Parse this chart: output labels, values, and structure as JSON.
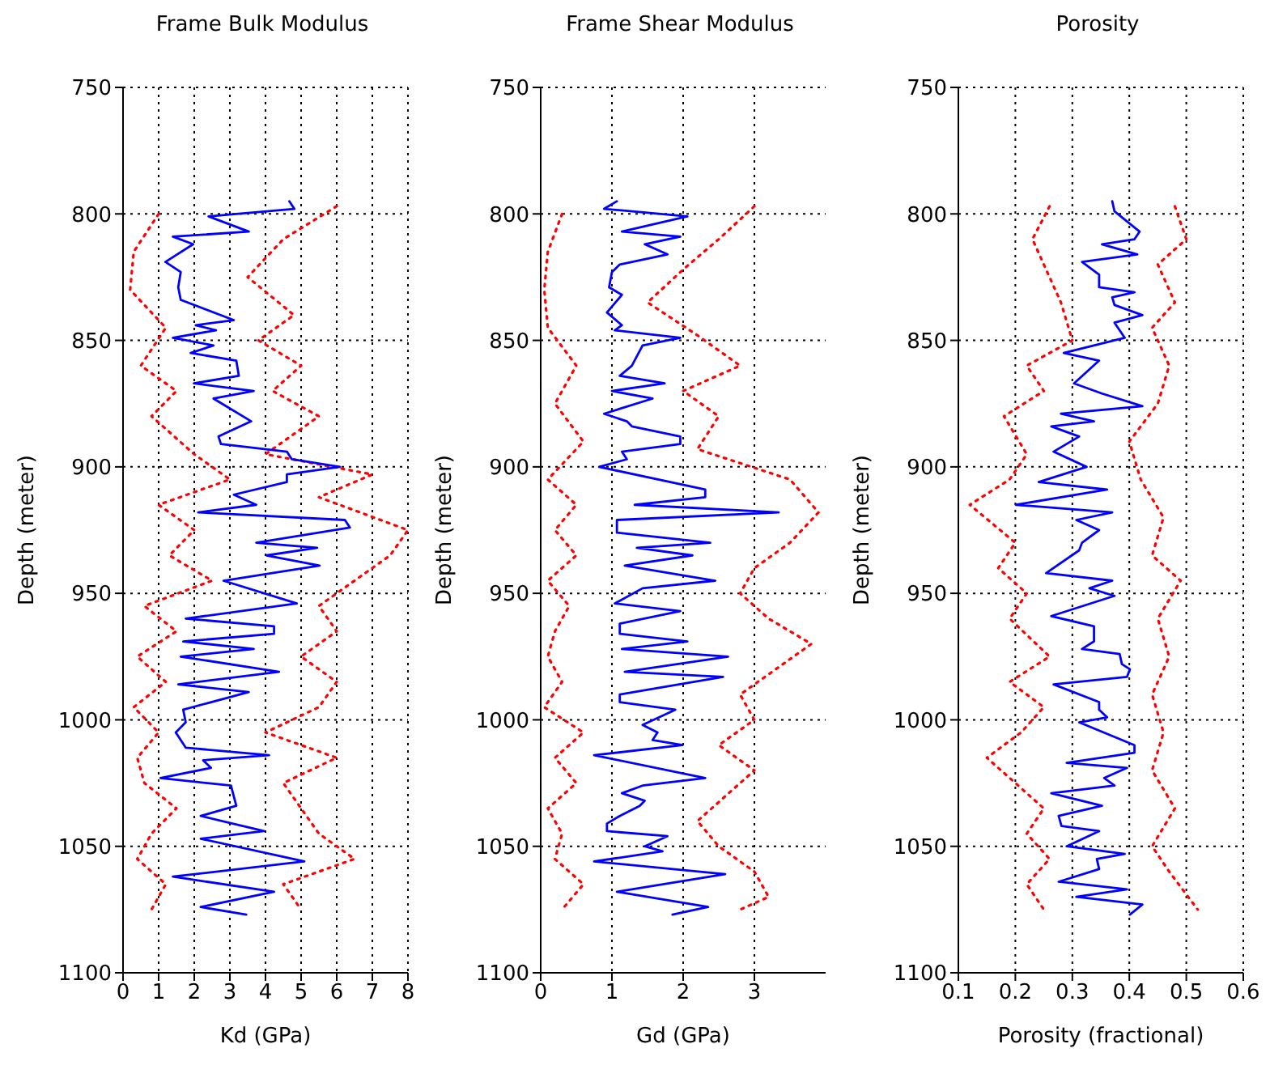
{
  "chart_data": [
    {
      "type": "line",
      "title": "Frame Bulk Modulus",
      "xlabel": "Kd (GPa)",
      "ylabel": "Depth (meter)",
      "xlim": [
        0,
        8
      ],
      "xticks": [
        0,
        1,
        2,
        3,
        4,
        5,
        6,
        7,
        8
      ],
      "ylim": [
        1100,
        750
      ],
      "yticks": [
        750,
        800,
        850,
        900,
        950,
        1000,
        1050,
        1100
      ],
      "grid": true,
      "series": [
        {
          "color": "#ff0000",
          "line_style": "dotted",
          "x": [
            1.0,
            0.3,
            0.2,
            1.2,
            0.5,
            1.5,
            0.8,
            2.0,
            3.0,
            1.0,
            2.0,
            1.3,
            2.5,
            0.6,
            1.5,
            0.4,
            1.2,
            0.3,
            1.0,
            0.4,
            0.6,
            1.5,
            0.8,
            0.4,
            1.2,
            0.8
          ],
          "values": [
            800,
            815,
            830,
            845,
            860,
            870,
            880,
            895,
            905,
            915,
            925,
            935,
            945,
            955,
            965,
            975,
            985,
            995,
            1005,
            1015,
            1025,
            1035,
            1045,
            1055,
            1065,
            1075
          ]
        },
        {
          "color": "#ff0000",
          "line_style": "dotted",
          "x": [
            6.0,
            4.5,
            3.5,
            4.8,
            3.8,
            5.0,
            4.2,
            5.5,
            4.0,
            7.0,
            5.5,
            8.0,
            7.5,
            6.5,
            5.5,
            6.0,
            5.0,
            6.0,
            5.5,
            4.0,
            6.0,
            4.5,
            5.0,
            5.5,
            6.5,
            4.5,
            5.0
          ],
          "values": [
            797,
            810,
            825,
            840,
            850,
            860,
            870,
            880,
            895,
            903,
            912,
            925,
            935,
            945,
            955,
            965,
            975,
            985,
            995,
            1005,
            1015,
            1025,
            1035,
            1045,
            1055,
            1065,
            1075
          ]
        },
        {
          "color": "#0000ff",
          "line_style": "solid",
          "x": [
            4.67,
            4.81,
            2.4,
            3.53,
            1.4,
            1.97,
            1.19,
            1.62,
            1.55,
            1.62,
            3.11,
            2.04,
            2.61,
            1.4,
            2.54,
            1.9,
            3.18,
            3.25,
            1.99,
            3.67,
            2.54,
            3.6,
            2.68,
            2.75,
            4.6,
            4.74,
            6.09,
            4.6,
            4.6,
            3.11,
            3.74,
            2.11,
            6.23,
            6.37,
            3.74,
            5.45,
            4.03,
            5.52,
            2.82,
            4.88,
            1.76,
            4.24,
            4.24,
            1.69,
            3.67,
            1.62,
            4.38,
            1.55,
            3.53,
            1.69,
            1.76,
            1.48,
            1.76,
            4.1,
            2.25,
            2.47,
            1.05,
            3.03,
            3.18,
            2.18,
            3.96,
            2.18,
            5.09,
            1.4,
            4.24,
            2.18,
            3.46
          ],
          "values": [
            795,
            798,
            801,
            807,
            809,
            812,
            819,
            823,
            829,
            834,
            842,
            844,
            846,
            849,
            852,
            855,
            858,
            864,
            867,
            870,
            873,
            882,
            888,
            891,
            894,
            897,
            900,
            903,
            906,
            911,
            915,
            918,
            921,
            924,
            930,
            932,
            935,
            939,
            945,
            954,
            960,
            963,
            966,
            969,
            972,
            975,
            981,
            986,
            989,
            996,
            1001,
            1005,
            1011,
            1014,
            1016,
            1019,
            1023,
            1026,
            1034,
            1038,
            1044,
            1047,
            1056,
            1062,
            1068,
            1074,
            1077
          ]
        }
      ]
    },
    {
      "type": "line",
      "title": "Frame Shear Modulus",
      "xlabel": "Gd (GPa)",
      "ylabel": "Depth (meter)",
      "xlim": [
        0,
        4
      ],
      "xticks": [
        0,
        1,
        2,
        3
      ],
      "ylim": [
        1100,
        750
      ],
      "yticks": [
        750,
        800,
        850,
        900,
        950,
        1000,
        1050,
        1100
      ],
      "grid": true,
      "series": [
        {
          "color": "#ff0000",
          "line_style": "dotted",
          "x": [
            0.3,
            0.1,
            0.05,
            0.1,
            0.5,
            0.2,
            0.6,
            0.1,
            0.5,
            0.2,
            0.5,
            0.1,
            0.4,
            0.2,
            0.1,
            0.3,
            0.05,
            0.6,
            0.2,
            0.5,
            0.1,
            0.3,
            0.2,
            0.6,
            0.3
          ],
          "values": [
            800,
            815,
            830,
            845,
            860,
            875,
            890,
            905,
            915,
            925,
            935,
            945,
            955,
            965,
            975,
            985,
            995,
            1005,
            1015,
            1025,
            1035,
            1045,
            1055,
            1065,
            1075
          ]
        },
        {
          "color": "#ff0000",
          "line_style": "dotted",
          "x": [
            3.0,
            2.5,
            2.0,
            1.5,
            2.2,
            2.8,
            2.0,
            2.5,
            2.2,
            3.5,
            3.9,
            3.5,
            3.0,
            2.8,
            3.2,
            3.8,
            3.3,
            2.8,
            3.0,
            2.5,
            3.0,
            2.6,
            2.2,
            2.5,
            3.0,
            3.2,
            2.8
          ],
          "values": [
            797,
            810,
            822,
            835,
            848,
            860,
            870,
            880,
            893,
            905,
            918,
            930,
            940,
            950,
            960,
            970,
            980,
            990,
            1000,
            1010,
            1020,
            1030,
            1040,
            1050,
            1060,
            1070,
            1075
          ]
        },
        {
          "color": "#0000ff",
          "line_style": "solid",
          "x": [
            1.07,
            0.89,
            2.06,
            1.14,
            1.96,
            1.46,
            1.78,
            1.11,
            1.0,
            0.96,
            1.14,
            0.93,
            1.14,
            1.04,
            1.96,
            1.43,
            1.28,
            1.11,
            1.74,
            1.0,
            1.57,
            0.89,
            1.21,
            1.28,
            1.96,
            1.96,
            1.14,
            1.21,
            0.82,
            2.31,
            2.31,
            1.32,
            3.34,
            1.07,
            1.07,
            2.38,
            1.35,
            2.13,
            1.18,
            2.45,
            1.43,
            1.04,
            1.96,
            1.11,
            1.11,
            2.06,
            1.14,
            2.63,
            1.18,
            2.56,
            1.11,
            1.11,
            1.89,
            1.43,
            1.64,
            1.57,
            1.99,
            0.75,
            2.31,
            1.43,
            1.14,
            1.46,
            1.39,
            1.11,
            0.93,
            0.93,
            1.78,
            1.46,
            1.71,
            0.75,
            2.59,
            1.07,
            2.35,
            1.85
          ],
          "values": [
            795,
            798,
            801,
            807,
            809,
            812,
            816,
            820,
            823,
            829,
            832,
            839,
            844,
            846,
            849,
            852,
            860,
            864,
            867,
            870,
            873,
            879,
            882,
            884,
            888,
            891,
            894,
            897,
            900,
            909,
            912,
            915,
            918,
            921,
            926,
            930,
            932,
            935,
            939,
            945,
            948,
            954,
            957,
            962,
            966,
            969,
            972,
            975,
            981,
            983,
            990,
            993,
            996,
            1002,
            1005,
            1008,
            1010,
            1014,
            1023,
            1026,
            1029,
            1032,
            1034,
            1038,
            1041,
            1044,
            1046,
            1050,
            1052,
            1056,
            1061,
            1068,
            1074,
            1077
          ]
        }
      ]
    },
    {
      "type": "line",
      "title": "Porosity",
      "xlabel": "Porosity (fractional)",
      "ylabel": "Depth (meter)",
      "xlim": [
        0.1,
        0.6
      ],
      "xticks": [
        0.1,
        0.2,
        0.3,
        0.4,
        0.5,
        0.6
      ],
      "ylim": [
        1100,
        750
      ],
      "yticks": [
        750,
        800,
        850,
        900,
        950,
        1000,
        1050,
        1100
      ],
      "grid": true,
      "series": [
        {
          "color": "#ff0000",
          "line_style": "dotted",
          "x": [
            0.26,
            0.23,
            0.25,
            0.28,
            0.3,
            0.22,
            0.25,
            0.18,
            0.22,
            0.19,
            0.12,
            0.2,
            0.17,
            0.22,
            0.19,
            0.26,
            0.19,
            0.25,
            0.21,
            0.15,
            0.2,
            0.25,
            0.22,
            0.26,
            0.22,
            0.25
          ],
          "values": [
            797,
            810,
            820,
            835,
            850,
            860,
            870,
            880,
            895,
            905,
            915,
            930,
            940,
            950,
            960,
            975,
            985,
            995,
            1005,
            1015,
            1025,
            1035,
            1045,
            1055,
            1065,
            1075
          ]
        },
        {
          "color": "#ff0000",
          "line_style": "dotted",
          "x": [
            0.48,
            0.5,
            0.45,
            0.48,
            0.44,
            0.47,
            0.45,
            0.4,
            0.42,
            0.46,
            0.44,
            0.49,
            0.45,
            0.47,
            0.44,
            0.46,
            0.44,
            0.48,
            0.44,
            0.47,
            0.52
          ],
          "values": [
            797,
            810,
            820,
            835,
            845,
            860,
            875,
            890,
            905,
            920,
            935,
            945,
            960,
            975,
            990,
            1005,
            1020,
            1035,
            1050,
            1060,
            1075
          ]
        },
        {
          "color": "#0000ff",
          "line_style": "solid",
          "x": [
            0.37,
            0.374,
            0.418,
            0.409,
            0.352,
            0.414,
            0.317,
            0.347,
            0.347,
            0.409,
            0.37,
            0.374,
            0.423,
            0.374,
            0.392,
            0.285,
            0.347,
            0.303,
            0.352,
            0.423,
            0.28,
            0.338,
            0.263,
            0.312,
            0.267,
            0.325,
            0.241,
            0.361,
            0.201,
            0.37,
            0.307,
            0.347,
            0.317,
            0.312,
            0.254,
            0.37,
            0.33,
            0.374,
            0.263,
            0.338,
            0.338,
            0.317,
            0.383,
            0.387,
            0.401,
            0.396,
            0.267,
            0.347,
            0.347,
            0.361,
            0.312,
            0.409,
            0.409,
            0.29,
            0.396,
            0.356,
            0.374,
            0.263,
            0.352,
            0.276,
            0.281,
            0.347,
            0.29,
            0.392,
            0.343,
            0.347,
            0.276,
            0.396,
            0.307,
            0.423,
            0.401
          ],
          "values": [
            795,
            799,
            807,
            810,
            812,
            816,
            819,
            824,
            829,
            831,
            833,
            836,
            840,
            843,
            849,
            855,
            858,
            867,
            871,
            876,
            879,
            882,
            884,
            888,
            894,
            900,
            906,
            909,
            915,
            918,
            921,
            925,
            930,
            933,
            942,
            945,
            948,
            951,
            959,
            963,
            969,
            972,
            974,
            978,
            980,
            983,
            986,
            993,
            996,
            999,
            1001,
            1010,
            1013,
            1017,
            1019,
            1023,
            1026,
            1029,
            1034,
            1038,
            1042,
            1044,
            1050,
            1053,
            1055,
            1059,
            1064,
            1067,
            1070,
            1073,
            1077
          ]
        }
      ]
    }
  ]
}
